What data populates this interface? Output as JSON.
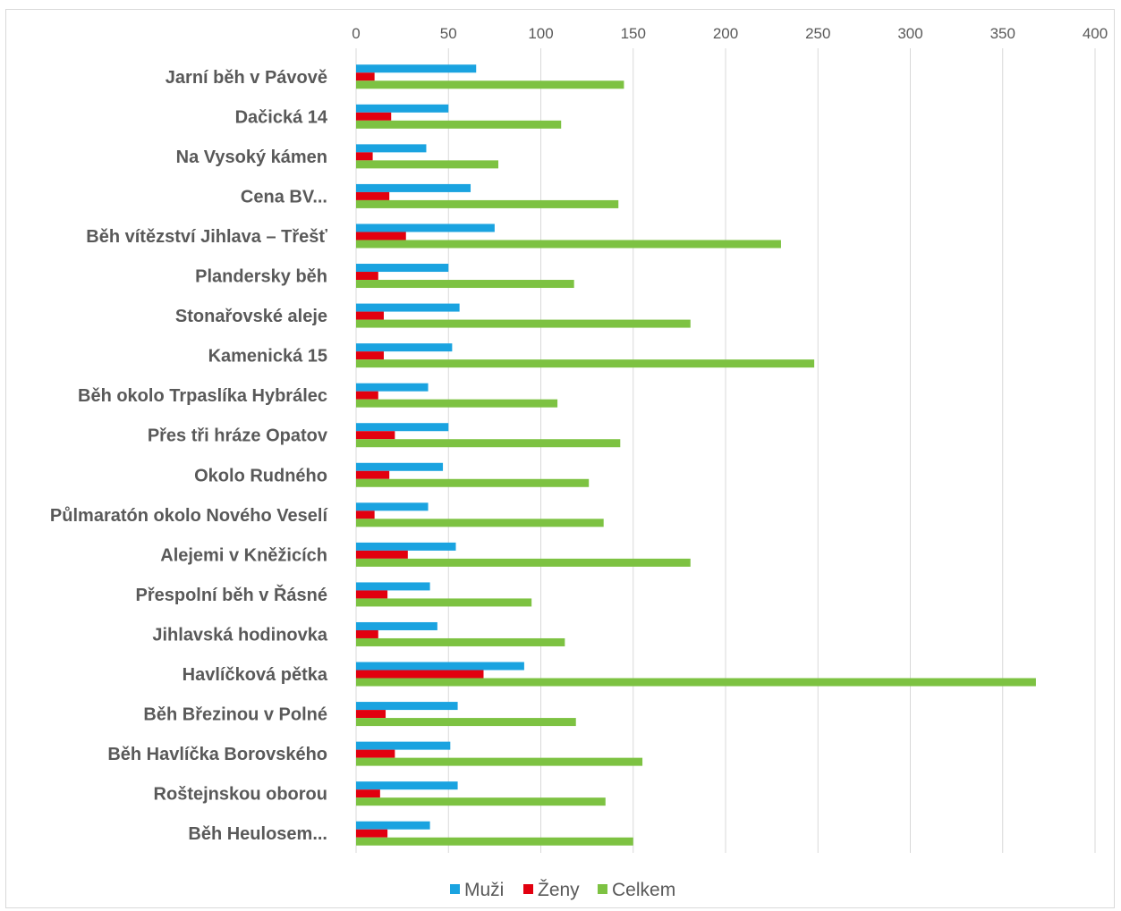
{
  "chart_data": {
    "type": "bar",
    "orientation": "horizontal",
    "xlim": [
      0,
      400
    ],
    "x_ticks": [
      0,
      50,
      100,
      150,
      200,
      250,
      300,
      350,
      400
    ],
    "x_axis_position": "top",
    "grid": true,
    "legend_position": "bottom",
    "categories": [
      "Jarní běh v Pávově",
      "Dačická 14",
      "Na Vysoký kámen",
      "Cena BV...",
      "Běh vítězství Jihlava – Třešť",
      "Plandersky běh",
      "Stonařovské aleje",
      "Kamenická 15",
      "Běh okolo Trpaslíka Hybrálec",
      "Přes tři hráze Opatov",
      "Okolo Rudného",
      "Půlmaratón okolo Nového Veselí",
      "Alejemi v Kněžicích",
      "Přespolní běh v Řásné",
      "Jihlavská hodinovka",
      "Havlíčková pětka",
      "Běh Březinou v Polné",
      "Běh Havlíčka Borovského",
      "Roštejnskou oborou",
      "Běh Heulosem..."
    ],
    "series": [
      {
        "name": "Muži",
        "color": "#1aa3e0",
        "values": [
          65,
          50,
          38,
          62,
          75,
          50,
          56,
          52,
          39,
          50,
          47,
          39,
          54,
          40,
          44,
          91,
          55,
          51,
          55,
          40
        ]
      },
      {
        "name": "Ženy",
        "color": "#e2000f",
        "values": [
          10,
          19,
          9,
          18,
          27,
          12,
          15,
          15,
          12,
          21,
          18,
          10,
          28,
          17,
          12,
          69,
          16,
          21,
          13,
          17
        ]
      },
      {
        "name": "Celkem",
        "color": "#7dc242",
        "values": [
          145,
          111,
          77,
          142,
          230,
          118,
          181,
          248,
          109,
          143,
          126,
          134,
          181,
          95,
          113,
          368,
          119,
          155,
          135,
          150
        ]
      }
    ]
  }
}
